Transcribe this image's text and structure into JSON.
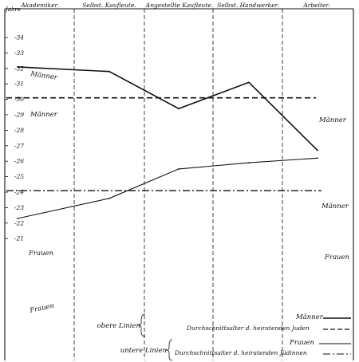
{
  "chart_data": {
    "type": "line",
    "y_unit_label": "Jahre",
    "categories": [
      "Akademiker.",
      "Selbst. Kaufleute.",
      "Angestellte Kaufleute.",
      "Selbst. Handwerker.",
      "Arbeiter."
    ],
    "yticks": [
      "34",
      "33",
      "32",
      "31",
      "30",
      "29",
      "28",
      "27",
      "26",
      "25",
      "24",
      "23",
      "22",
      "21"
    ],
    "ylim": [
      20.5,
      34.9
    ],
    "series": [
      {
        "name": "Männer",
        "values": [
          32.1,
          31.8,
          29.4,
          31.1,
          26.7
        ]
      },
      {
        "name": "Frauen",
        "values": [
          22.3,
          23.6,
          25.5,
          25.9,
          26.2
        ]
      }
    ],
    "averages": [
      {
        "name": "Männer",
        "value": 30.1
      },
      {
        "name": "Frauen",
        "value": 24.1
      }
    ],
    "line_labels": {
      "men_series_start": "Männer",
      "men_series_end": "Männer",
      "men_avg_left": "Männer",
      "men_avg_right": "Männer",
      "women_series_start": "Frauen",
      "women_avg_left": "Frauen",
      "women_avg_right": "Frauen"
    },
    "legend": {
      "upper_label": "obere Linien",
      "lower_label": "untere Linien",
      "upper_solid": "Männer",
      "upper_dashed": "Durchschnittsalter d. heiratenden Juden",
      "lower_solid": "Frauen",
      "lower_dashed": "Durchschnittsalter d. heiratenden Jüdinnen"
    }
  }
}
